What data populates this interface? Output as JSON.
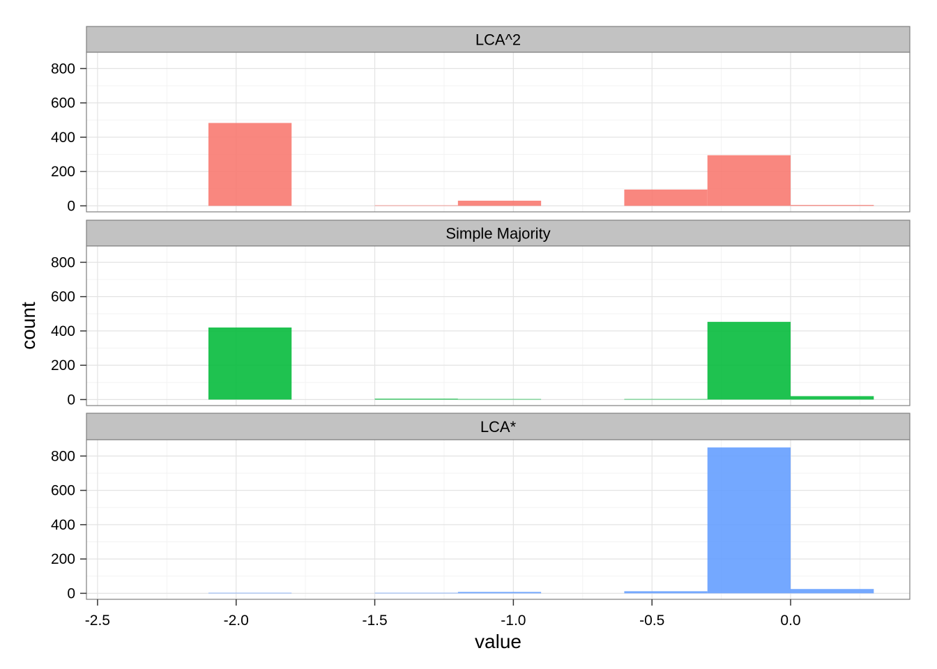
{
  "chart_data": {
    "type": "bar",
    "subtype": "faceted-histogram",
    "xlabel": "value",
    "ylabel": "count",
    "xlim": [
      -2.54,
      0.43
    ],
    "ylim": [
      -35,
      895
    ],
    "x_ticks": [
      -2.5,
      -2.0,
      -1.5,
      -1.0,
      -0.5,
      0.0
    ],
    "x_tick_labels": [
      "-2.5",
      "-2.0",
      "-1.5",
      "-1.0",
      "-0.5",
      "0.0"
    ],
    "y_ticks": [
      0,
      200,
      400,
      600,
      800
    ],
    "y_tick_labels": [
      "0",
      "200",
      "400",
      "600",
      "800"
    ],
    "bin_width": 0.3,
    "bin_starts": [
      -2.1,
      -1.8,
      -1.5,
      -1.2,
      -0.9,
      -0.6,
      -0.3,
      0.0
    ],
    "grid": true,
    "legend": "none",
    "facets": [
      {
        "name": "LCA^2",
        "color": "#F8766D",
        "values": [
          483,
          0,
          3,
          30,
          0,
          95,
          295,
          5
        ]
      },
      {
        "name": "Simple Majority",
        "color": "#00BA38",
        "values": [
          420,
          0,
          5,
          3,
          0,
          3,
          453,
          20
        ]
      },
      {
        "name": "LCA*",
        "color": "#619CFF",
        "values": [
          3,
          0,
          3,
          8,
          0,
          12,
          850,
          25
        ]
      }
    ]
  }
}
